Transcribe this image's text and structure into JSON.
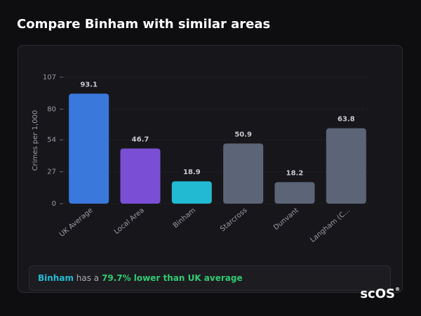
{
  "chart_data": {
    "type": "bar",
    "title": "Compare Binham with similar areas",
    "y_label": "Crimes per 1,000",
    "categories": [
      "UK Average",
      "Local Area",
      "Binham",
      "Starcross",
      "Dunvant",
      "Langham (C..."
    ],
    "values": [
      93.1,
      46.7,
      18.9,
      50.9,
      18.2,
      63.8
    ],
    "colors": [
      "#3a78dc",
      "#7a4fd6",
      "#22bad2",
      "#5b6577",
      "#5b6577",
      "#5b6577"
    ],
    "ylim": [
      0,
      107
    ],
    "yticks": [
      0,
      27,
      54,
      80,
      107
    ],
    "grid": true
  },
  "summary": {
    "area": "Binham",
    "text": "has a",
    "highlight": "79.7% lower than UK average"
  },
  "logo": {
    "text": "scOS",
    "mark": "®"
  }
}
